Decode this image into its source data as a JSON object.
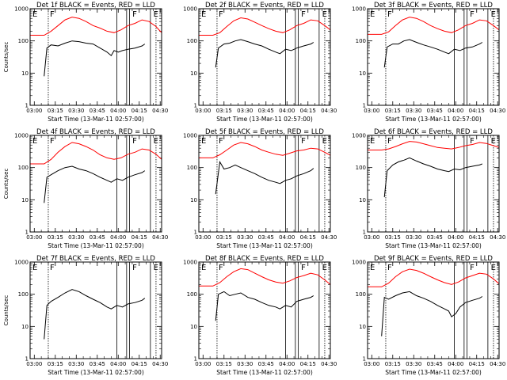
{
  "colors": {
    "events": "#000000",
    "lld": "#ff0000",
    "axis": "#000000"
  },
  "chart_data": [
    {
      "type": "line",
      "title": "Det 1f BLACK = Events, RED = LLD",
      "ylabel": "Counts/sec",
      "xlabel": "Start Time (13-Mar-11 02:57:00)",
      "xticks": [
        "03:00",
        "03:15",
        "03:30",
        "03:45",
        "04:00",
        "04:15",
        "04:30"
      ],
      "yticks": [
        "1",
        "10",
        "100",
        "1000"
      ],
      "ylim": [
        1,
        1000
      ],
      "ylog": true,
      "xlim_minutes": [
        0,
        94
      ],
      "region_labels": [
        "E",
        "F",
        "F",
        "E"
      ],
      "series": [
        {
          "key": "events",
          "x": [
            10,
            12,
            15,
            20,
            25,
            30,
            35,
            40,
            45,
            50,
            55,
            58,
            60,
            63,
            66,
            70,
            75,
            80,
            82
          ],
          "y": [
            8,
            60,
            75,
            70,
            85,
            100,
            95,
            85,
            80,
            60,
            45,
            35,
            50,
            45,
            50,
            55,
            60,
            70,
            80
          ]
        },
        {
          "key": "lld",
          "x": [
            0,
            10,
            15,
            20,
            25,
            30,
            35,
            40,
            45,
            50,
            55,
            60,
            65,
            70,
            75,
            80,
            85,
            90,
            94
          ],
          "y": [
            150,
            150,
            200,
            300,
            450,
            550,
            500,
            400,
            300,
            250,
            200,
            180,
            220,
            300,
            350,
            450,
            400,
            280,
            180
          ]
        }
      ]
    },
    {
      "type": "line",
      "title": "Det 2f BLACK = Events, RED = LLD",
      "ylabel": "",
      "xlabel": "Start Time (13-Mar-11 02:57:00)",
      "xticks": [
        "03:00",
        "03:15",
        "03:30",
        "03:45",
        "04:00",
        "04:15",
        "04:30"
      ],
      "yticks": [
        "1",
        "10",
        "100",
        "1000"
      ],
      "ylim": [
        1,
        1000
      ],
      "ylog": true,
      "xlim_minutes": [
        0,
        94
      ],
      "region_labels": [
        "E",
        "F",
        "F",
        "E"
      ],
      "series": [
        {
          "key": "events",
          "x": [
            12,
            14,
            18,
            22,
            26,
            30,
            35,
            40,
            45,
            50,
            55,
            58,
            62,
            66,
            70,
            75,
            80,
            82
          ],
          "y": [
            15,
            60,
            80,
            85,
            100,
            110,
            95,
            80,
            70,
            55,
            45,
            40,
            55,
            50,
            60,
            70,
            80,
            90
          ]
        },
        {
          "key": "lld",
          "x": [
            0,
            10,
            15,
            20,
            25,
            30,
            35,
            40,
            45,
            50,
            55,
            60,
            65,
            70,
            75,
            80,
            85,
            90,
            94
          ],
          "y": [
            150,
            150,
            180,
            280,
            420,
            520,
            480,
            380,
            300,
            240,
            200,
            180,
            220,
            300,
            350,
            450,
            420,
            300,
            220
          ]
        }
      ]
    },
    {
      "type": "line",
      "title": "Det 3f BLACK = Events, RED = LLD",
      "ylabel": "",
      "xlabel": "Start Time (13-Mar-11 02:57:00)",
      "xticks": [
        "03:00",
        "03:15",
        "03:30",
        "03:45",
        "04:00",
        "04:15",
        "04:30"
      ],
      "yticks": [
        "1",
        "10",
        "100",
        "1000"
      ],
      "ylim": [
        1,
        1000
      ],
      "ylog": true,
      "xlim_minutes": [
        0,
        94
      ],
      "region_labels": [
        "E",
        "F",
        "F",
        "E"
      ],
      "series": [
        {
          "key": "events",
          "x": [
            12,
            14,
            18,
            22,
            26,
            30,
            35,
            40,
            45,
            50,
            55,
            58,
            62,
            66,
            70,
            75,
            80,
            82
          ],
          "y": [
            15,
            65,
            80,
            80,
            100,
            110,
            90,
            75,
            65,
            55,
            45,
            40,
            55,
            50,
            60,
            65,
            80,
            90
          ]
        },
        {
          "key": "lld",
          "x": [
            0,
            10,
            15,
            20,
            25,
            30,
            35,
            40,
            45,
            50,
            55,
            60,
            65,
            70,
            75,
            80,
            85,
            90,
            94
          ],
          "y": [
            160,
            160,
            190,
            300,
            450,
            550,
            500,
            400,
            300,
            240,
            200,
            180,
            220,
            300,
            350,
            450,
            420,
            300,
            220
          ]
        }
      ]
    },
    {
      "type": "line",
      "title": "Det 4f BLACK = Events, RED = LLD",
      "ylabel": "Counts/sec",
      "xlabel": "Start Time (13-Mar-11 02:57:00)",
      "xticks": [
        "03:00",
        "03:15",
        "03:30",
        "03:45",
        "04:00",
        "04:15",
        "04:30"
      ],
      "yticks": [
        "1",
        "10",
        "100",
        "1000"
      ],
      "ylim": [
        1,
        1000
      ],
      "ylog": true,
      "xlim_minutes": [
        0,
        94
      ],
      "region_labels": [
        "E",
        "F",
        "F",
        "E"
      ],
      "series": [
        {
          "key": "events",
          "x": [
            10,
            12,
            15,
            20,
            25,
            30,
            35,
            40,
            45,
            50,
            55,
            58,
            62,
            66,
            70,
            75,
            80,
            82
          ],
          "y": [
            8,
            50,
            60,
            80,
            100,
            110,
            90,
            80,
            65,
            50,
            40,
            35,
            45,
            40,
            50,
            60,
            70,
            80
          ]
        },
        {
          "key": "lld",
          "x": [
            0,
            10,
            15,
            20,
            25,
            30,
            35,
            40,
            45,
            50,
            55,
            60,
            65,
            70,
            75,
            80,
            85,
            90,
            94
          ],
          "y": [
            130,
            130,
            180,
            300,
            450,
            600,
            550,
            450,
            350,
            250,
            200,
            180,
            200,
            260,
            300,
            380,
            350,
            260,
            180
          ]
        }
      ]
    },
    {
      "type": "line",
      "title": "Det 5f BLACK = Events, RED = LLD",
      "ylabel": "",
      "xlabel": "Start Time (13-Mar-11 02:57:00)",
      "xticks": [
        "03:00",
        "03:15",
        "03:30",
        "03:45",
        "04:00",
        "04:15",
        "04:30"
      ],
      "yticks": [
        "1",
        "10",
        "100",
        "1000"
      ],
      "ylim": [
        1,
        1000
      ],
      "ylog": true,
      "xlim_minutes": [
        0,
        94
      ],
      "region_labels": [
        "E",
        "F",
        "F",
        "E"
      ],
      "series": [
        {
          "key": "events",
          "x": [
            12,
            15,
            18,
            22,
            26,
            30,
            35,
            40,
            45,
            50,
            55,
            58,
            62,
            66,
            70,
            75,
            80,
            82
          ],
          "y": [
            15,
            150,
            90,
            100,
            120,
            100,
            80,
            65,
            50,
            40,
            35,
            32,
            40,
            45,
            55,
            65,
            80,
            95
          ]
        },
        {
          "key": "lld",
          "x": [
            0,
            10,
            15,
            20,
            25,
            30,
            35,
            40,
            45,
            50,
            55,
            60,
            65,
            70,
            75,
            80,
            85,
            90,
            94
          ],
          "y": [
            200,
            200,
            250,
            350,
            500,
            600,
            550,
            450,
            350,
            300,
            260,
            240,
            280,
            330,
            350,
            400,
            380,
            300,
            240
          ]
        }
      ]
    },
    {
      "type": "line",
      "title": "Det 6f BLACK = Events, RED = LLD",
      "ylabel": "",
      "xlabel": "Start Time (13-Mar-11 02:57:00)",
      "xticks": [
        "03:00",
        "03:15",
        "03:30",
        "03:45",
        "04:00",
        "04:15",
        "04:30"
      ],
      "yticks": [
        "1",
        "10",
        "100",
        "1000"
      ],
      "ylim": [
        1,
        1000
      ],
      "ylog": true,
      "xlim_minutes": [
        0,
        94
      ],
      "region_labels": [
        "E",
        "F",
        "F",
        "E"
      ],
      "series": [
        {
          "key": "events",
          "x": [
            12,
            14,
            18,
            22,
            26,
            30,
            35,
            40,
            45,
            50,
            55,
            58,
            62,
            66,
            70,
            75,
            80,
            82
          ],
          "y": [
            12,
            80,
            120,
            150,
            170,
            200,
            160,
            130,
            110,
            90,
            80,
            75,
            90,
            85,
            100,
            110,
            120,
            130
          ]
        },
        {
          "key": "lld",
          "x": [
            0,
            10,
            15,
            20,
            25,
            30,
            35,
            40,
            45,
            50,
            55,
            60,
            65,
            70,
            75,
            80,
            85,
            90,
            94
          ],
          "y": [
            350,
            350,
            380,
            450,
            550,
            650,
            620,
            550,
            480,
            420,
            400,
            380,
            420,
            480,
            520,
            600,
            560,
            480,
            420
          ]
        }
      ]
    },
    {
      "type": "line",
      "title": "Det 7f BLACK = Events, RED = LLD",
      "ylabel": "Counts/sec",
      "xlabel": "Start Time (13-Mar-11 02:57:00)",
      "xticks": [
        "03:00",
        "03:15",
        "03:30",
        "03:45",
        "04:00",
        "04:15",
        "04:30"
      ],
      "yticks": [
        "1",
        "10",
        "100",
        "1000"
      ],
      "ylim": [
        1,
        1000
      ],
      "ylog": true,
      "xlim_minutes": [
        0,
        94
      ],
      "region_labels": [
        "E",
        "F",
        "F",
        "E"
      ],
      "series": [
        {
          "key": "events",
          "x": [
            10,
            12,
            15,
            20,
            25,
            30,
            35,
            40,
            45,
            50,
            55,
            58,
            62,
            66,
            70,
            75,
            80,
            82
          ],
          "y": [
            4,
            45,
            60,
            80,
            110,
            140,
            120,
            90,
            70,
            55,
            40,
            35,
            45,
            40,
            50,
            55,
            65,
            75
          ]
        }
      ]
    },
    {
      "type": "line",
      "title": "Det 8f BLACK = Events, RED = LLD",
      "ylabel": "",
      "xlabel": "Start Time (13-Mar-11 02:57:00)",
      "xticks": [
        "03:00",
        "03:15",
        "03:30",
        "03:45",
        "04:00",
        "04:15",
        "04:30"
      ],
      "yticks": [
        "1",
        "10",
        "100",
        "1000"
      ],
      "ylim": [
        1,
        1000
      ],
      "ylog": true,
      "xlim_minutes": [
        0,
        94
      ],
      "region_labels": [
        "E",
        "F",
        "F",
        "E"
      ],
      "series": [
        {
          "key": "events",
          "x": [
            12,
            14,
            18,
            22,
            26,
            30,
            35,
            40,
            45,
            50,
            55,
            58,
            62,
            66,
            70,
            75,
            80,
            82
          ],
          "y": [
            15,
            100,
            120,
            90,
            100,
            110,
            80,
            70,
            55,
            45,
            40,
            35,
            45,
            40,
            60,
            70,
            80,
            90
          ]
        },
        {
          "key": "lld",
          "x": [
            0,
            10,
            15,
            20,
            25,
            30,
            35,
            40,
            45,
            50,
            55,
            60,
            65,
            70,
            75,
            80,
            85,
            90,
            94
          ],
          "y": [
            180,
            180,
            230,
            350,
            500,
            620,
            580,
            450,
            350,
            280,
            240,
            220,
            260,
            330,
            380,
            450,
            400,
            280,
            200
          ]
        }
      ]
    },
    {
      "type": "line",
      "title": "Det 9f BLACK = Events, RED = LLD",
      "ylabel": "",
      "xlabel": "Start Time (13-Mar-11 02:57:00)",
      "xticks": [
        "03:00",
        "03:15",
        "03:30",
        "03:45",
        "04:00",
        "04:15",
        "04:30"
      ],
      "yticks": [
        "1",
        "10",
        "100",
        "1000"
      ],
      "ylim": [
        1,
        1000
      ],
      "ylog": true,
      "xlim_minutes": [
        0,
        94
      ],
      "region_labels": [
        "E",
        "F",
        "F",
        "E"
      ],
      "series": [
        {
          "key": "events",
          "x": [
            10,
            12,
            15,
            20,
            25,
            30,
            35,
            40,
            45,
            50,
            55,
            58,
            60,
            63,
            66,
            70,
            75,
            80,
            82
          ],
          "y": [
            5,
            80,
            70,
            90,
            110,
            120,
            90,
            75,
            60,
            45,
            35,
            30,
            20,
            25,
            40,
            55,
            65,
            75,
            85
          ]
        },
        {
          "key": "lld",
          "x": [
            0,
            10,
            15,
            20,
            25,
            30,
            35,
            40,
            45,
            50,
            55,
            60,
            65,
            70,
            75,
            80,
            85,
            90,
            94
          ],
          "y": [
            170,
            170,
            220,
            350,
            500,
            600,
            550,
            450,
            350,
            280,
            230,
            200,
            240,
            320,
            380,
            450,
            420,
            300,
            210
          ]
        }
      ]
    }
  ],
  "markers": {
    "dotted_minutes": [
      13,
      90
    ],
    "solid_minutes": [
      62,
      69,
      71,
      86
    ]
  }
}
